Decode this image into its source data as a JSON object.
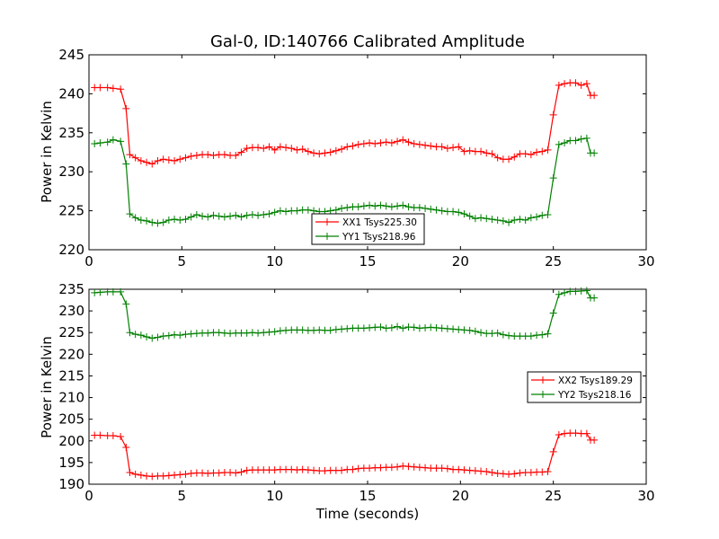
{
  "chart_data": [
    {
      "type": "line",
      "title": "Gal-0, ID:140766 Calibrated Amplitude",
      "xlabel": "",
      "ylabel": "Power in Kelvin",
      "xlim": [
        0,
        30
      ],
      "ylim": [
        220,
        245
      ],
      "xticks": [
        0,
        5,
        10,
        15,
        20,
        25,
        30
      ],
      "yticks": [
        220,
        225,
        230,
        235,
        240,
        245
      ],
      "legend_position": "lower-center",
      "series": [
        {
          "name": "XX1 Tsys225.30",
          "color": "#ff0000",
          "x": [
            0.3,
            0.6,
            1.0,
            1.3,
            1.7,
            2.0,
            2.2,
            2.5,
            2.8,
            3.1,
            3.4,
            3.7,
            4.0,
            4.3,
            4.6,
            4.9,
            5.2,
            5.5,
            5.8,
            6.1,
            6.4,
            6.7,
            7.0,
            7.3,
            7.6,
            7.9,
            8.2,
            8.5,
            8.8,
            9.1,
            9.4,
            9.7,
            10.0,
            10.3,
            10.6,
            10.9,
            11.2,
            11.5,
            11.8,
            12.1,
            12.4,
            12.7,
            13.0,
            13.3,
            13.6,
            13.9,
            14.2,
            14.5,
            14.8,
            15.1,
            15.4,
            15.7,
            16.0,
            16.3,
            16.6,
            16.9,
            17.2,
            17.5,
            17.8,
            18.1,
            18.4,
            18.7,
            19.0,
            19.3,
            19.6,
            19.9,
            20.2,
            20.5,
            20.8,
            21.1,
            21.4,
            21.7,
            22.0,
            22.3,
            22.6,
            22.9,
            23.2,
            23.5,
            23.8,
            24.1,
            24.4,
            24.7,
            25.0,
            25.3,
            25.6,
            25.9,
            26.2,
            26.5,
            26.8,
            27.0,
            27.2
          ],
          "values": [
            240.8,
            240.8,
            240.8,
            240.7,
            240.6,
            238.1,
            232.2,
            231.8,
            231.4,
            231.2,
            231.0,
            231.4,
            231.6,
            231.5,
            231.4,
            231.6,
            231.8,
            232.0,
            232.1,
            232.2,
            232.2,
            232.1,
            232.2,
            232.2,
            232.1,
            232.1,
            232.5,
            233.0,
            233.1,
            233.1,
            233.0,
            233.2,
            232.8,
            233.2,
            233.1,
            233.0,
            232.8,
            232.9,
            232.6,
            232.4,
            232.3,
            232.4,
            232.5,
            232.7,
            232.9,
            233.2,
            233.3,
            233.5,
            233.6,
            233.7,
            233.6,
            233.7,
            233.8,
            233.7,
            233.9,
            234.1,
            233.8,
            233.6,
            233.5,
            233.4,
            233.3,
            233.2,
            233.2,
            233.0,
            233.1,
            233.2,
            232.6,
            232.7,
            232.6,
            232.6,
            232.4,
            232.3,
            231.8,
            231.6,
            231.6,
            231.9,
            232.3,
            232.3,
            232.2,
            232.5,
            232.6,
            232.8,
            237.3,
            241.1,
            241.3,
            241.4,
            241.4,
            241.1,
            241.3,
            239.8,
            239.8
          ]
        },
        {
          "name": "YY1 Tsys218.96",
          "color": "#008000",
          "x": [
            0.3,
            0.6,
            1.0,
            1.3,
            1.7,
            2.0,
            2.2,
            2.5,
            2.8,
            3.1,
            3.4,
            3.7,
            4.0,
            4.3,
            4.6,
            4.9,
            5.2,
            5.5,
            5.8,
            6.1,
            6.4,
            6.7,
            7.0,
            7.3,
            7.6,
            7.9,
            8.2,
            8.5,
            8.8,
            9.1,
            9.4,
            9.7,
            10.0,
            10.3,
            10.6,
            10.9,
            11.2,
            11.5,
            11.8,
            12.1,
            12.4,
            12.7,
            13.0,
            13.3,
            13.6,
            13.9,
            14.2,
            14.5,
            14.8,
            15.1,
            15.4,
            15.7,
            16.0,
            16.3,
            16.6,
            16.9,
            17.2,
            17.5,
            17.8,
            18.1,
            18.4,
            18.7,
            19.0,
            19.3,
            19.6,
            19.9,
            20.2,
            20.5,
            20.8,
            21.1,
            21.4,
            21.7,
            22.0,
            22.3,
            22.6,
            22.9,
            23.2,
            23.5,
            23.8,
            24.1,
            24.4,
            24.7,
            25.0,
            25.3,
            25.6,
            25.9,
            26.2,
            26.5,
            26.8,
            27.0,
            27.2
          ],
          "values": [
            233.6,
            233.7,
            233.8,
            234.1,
            233.9,
            231.0,
            224.6,
            224.1,
            223.8,
            223.7,
            223.5,
            223.4,
            223.5,
            223.8,
            223.9,
            223.8,
            223.9,
            224.2,
            224.5,
            224.3,
            224.2,
            224.4,
            224.3,
            224.2,
            224.3,
            224.4,
            224.2,
            224.4,
            224.5,
            224.4,
            224.5,
            224.6,
            224.8,
            225.0,
            224.9,
            225.0,
            225.0,
            225.1,
            225.1,
            225.0,
            224.9,
            224.9,
            225.0,
            225.1,
            225.3,
            225.4,
            225.5,
            225.5,
            225.6,
            225.7,
            225.6,
            225.7,
            225.6,
            225.5,
            225.6,
            225.7,
            225.5,
            225.4,
            225.4,
            225.3,
            225.2,
            225.1,
            225.0,
            224.9,
            224.9,
            224.8,
            224.6,
            224.3,
            224.0,
            224.1,
            224.0,
            223.9,
            223.8,
            223.7,
            223.5,
            223.8,
            223.9,
            223.8,
            224.1,
            224.2,
            224.4,
            224.5,
            229.2,
            233.5,
            233.7,
            234.0,
            234.0,
            234.2,
            234.3,
            232.4,
            232.4
          ]
        }
      ]
    },
    {
      "type": "line",
      "title": "",
      "xlabel": "Time (seconds)",
      "ylabel": "Power in Kelvin",
      "xlim": [
        0,
        30
      ],
      "ylim": [
        190,
        235
      ],
      "xticks": [
        0,
        5,
        10,
        15,
        20,
        25,
        30
      ],
      "yticks": [
        190,
        195,
        200,
        205,
        210,
        215,
        220,
        225,
        230,
        235
      ],
      "legend_position": "center-right",
      "series": [
        {
          "name": "XX2 Tsys189.29",
          "color": "#ff0000",
          "x": [
            0.3,
            0.6,
            1.0,
            1.3,
            1.7,
            2.0,
            2.2,
            2.5,
            2.8,
            3.1,
            3.4,
            3.7,
            4.0,
            4.3,
            4.6,
            4.9,
            5.2,
            5.5,
            5.8,
            6.1,
            6.4,
            6.7,
            7.0,
            7.3,
            7.6,
            7.9,
            8.2,
            8.5,
            8.8,
            9.1,
            9.4,
            9.7,
            10.0,
            10.3,
            10.6,
            10.9,
            11.2,
            11.5,
            11.8,
            12.1,
            12.4,
            12.7,
            13.0,
            13.3,
            13.6,
            13.9,
            14.2,
            14.5,
            14.8,
            15.1,
            15.4,
            15.7,
            16.0,
            16.3,
            16.6,
            16.9,
            17.2,
            17.5,
            17.8,
            18.1,
            18.4,
            18.7,
            19.0,
            19.3,
            19.6,
            19.9,
            20.2,
            20.5,
            20.8,
            21.1,
            21.4,
            21.7,
            22.0,
            22.3,
            22.6,
            22.9,
            23.2,
            23.5,
            23.8,
            24.1,
            24.4,
            24.7,
            25.0,
            25.3,
            25.6,
            25.9,
            26.2,
            26.5,
            26.8,
            27.0,
            27.2
          ],
          "values": [
            201.3,
            201.3,
            201.2,
            201.2,
            201.0,
            198.5,
            192.7,
            192.3,
            192.1,
            191.9,
            191.8,
            191.9,
            191.9,
            192.0,
            192.1,
            192.2,
            192.3,
            192.5,
            192.6,
            192.6,
            192.5,
            192.6,
            192.6,
            192.7,
            192.7,
            192.6,
            192.8,
            193.2,
            193.3,
            193.3,
            193.3,
            193.3,
            193.3,
            193.4,
            193.4,
            193.4,
            193.3,
            193.4,
            193.3,
            193.2,
            193.1,
            193.1,
            193.2,
            193.2,
            193.2,
            193.4,
            193.4,
            193.6,
            193.7,
            193.7,
            193.8,
            193.8,
            193.9,
            193.9,
            194.0,
            194.2,
            194.1,
            194.0,
            193.9,
            193.8,
            193.7,
            193.7,
            193.7,
            193.6,
            193.4,
            193.4,
            193.3,
            193.2,
            193.1,
            193.0,
            192.9,
            192.7,
            192.5,
            192.4,
            192.3,
            192.4,
            192.6,
            192.7,
            192.7,
            192.8,
            192.8,
            192.9,
            197.5,
            201.4,
            201.7,
            201.8,
            201.8,
            201.7,
            201.7,
            200.2,
            200.2
          ]
        },
        {
          "name": "YY2 Tsys218.16",
          "color": "#008000",
          "x": [
            0.3,
            0.6,
            1.0,
            1.3,
            1.7,
            2.0,
            2.2,
            2.5,
            2.8,
            3.1,
            3.4,
            3.7,
            4.0,
            4.3,
            4.6,
            4.9,
            5.2,
            5.5,
            5.8,
            6.1,
            6.4,
            6.7,
            7.0,
            7.3,
            7.6,
            7.9,
            8.2,
            8.5,
            8.8,
            9.1,
            9.4,
            9.7,
            10.0,
            10.3,
            10.6,
            10.9,
            11.2,
            11.5,
            11.8,
            12.1,
            12.4,
            12.7,
            13.0,
            13.3,
            13.6,
            13.9,
            14.2,
            14.5,
            14.8,
            15.1,
            15.4,
            15.7,
            16.0,
            16.3,
            16.6,
            16.9,
            17.2,
            17.5,
            17.8,
            18.1,
            18.4,
            18.7,
            19.0,
            19.3,
            19.6,
            19.9,
            20.2,
            20.5,
            20.8,
            21.1,
            21.4,
            21.7,
            22.0,
            22.3,
            22.6,
            22.9,
            23.2,
            23.5,
            23.8,
            24.1,
            24.4,
            24.7,
            25.0,
            25.3,
            25.6,
            25.9,
            26.2,
            26.5,
            26.8,
            27.0,
            27.2
          ],
          "values": [
            234.2,
            234.3,
            234.4,
            234.4,
            234.4,
            231.6,
            225.0,
            224.6,
            224.4,
            224.0,
            223.7,
            223.9,
            224.2,
            224.3,
            224.5,
            224.4,
            224.6,
            224.7,
            224.8,
            224.9,
            224.9,
            225.0,
            225.0,
            224.9,
            224.8,
            224.9,
            224.9,
            224.9,
            225.0,
            224.9,
            225.0,
            225.1,
            225.2,
            225.4,
            225.5,
            225.6,
            225.6,
            225.6,
            225.5,
            225.5,
            225.6,
            225.5,
            225.5,
            225.7,
            225.8,
            225.9,
            226.0,
            226.0,
            226.0,
            226.1,
            226.2,
            226.3,
            226.0,
            226.1,
            226.4,
            226.0,
            226.3,
            226.2,
            226.0,
            226.1,
            226.2,
            226.1,
            226.0,
            225.9,
            225.8,
            225.7,
            225.6,
            225.5,
            225.3,
            225.0,
            224.8,
            224.8,
            224.9,
            224.5,
            224.3,
            224.2,
            224.2,
            224.2,
            224.2,
            224.4,
            224.5,
            224.7,
            229.5,
            233.8,
            234.2,
            234.5,
            234.5,
            234.6,
            234.7,
            233.0,
            233.0
          ]
        }
      ]
    }
  ]
}
